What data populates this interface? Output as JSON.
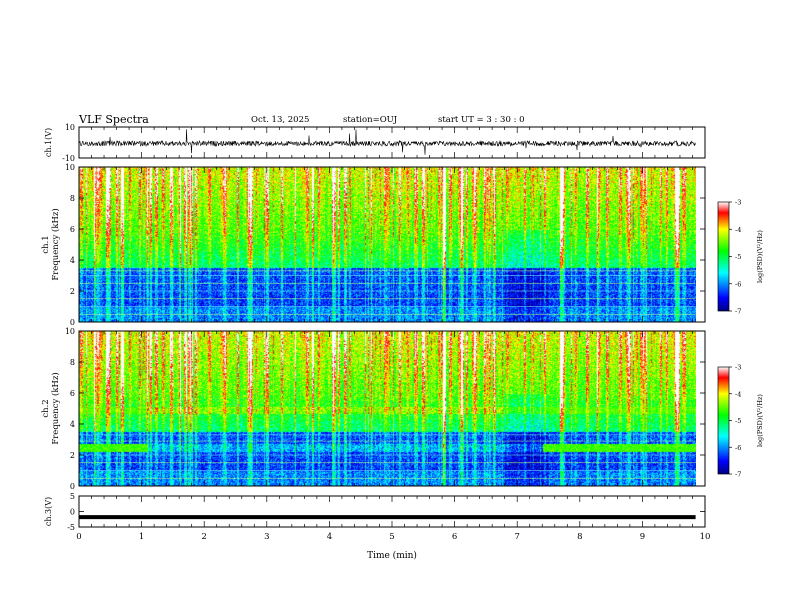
{
  "header": {
    "title": "VLF Spectra",
    "date": "Oct. 13, 2025",
    "station": "station=OUJ",
    "start": "start  UT =   3 : 30 : 0"
  },
  "chart_data": [
    {
      "type": "line",
      "name_label": "ch.1(V)",
      "ylabel": "ch.1(V)",
      "ylim": [
        -10,
        10
      ],
      "yticks": [
        "10",
        "-10"
      ],
      "xlim": [
        0,
        10
      ],
      "description_values": {
        "baseline": 0,
        "typical_spike_max": 10,
        "typical_spike_min": -10
      }
    },
    {
      "type": "heatmap",
      "ylabel_channel": "ch.1",
      "ylabel": "Frequency (kHz)",
      "ylim": [
        0,
        10
      ],
      "yticks": [
        "0",
        "2",
        "4",
        "6",
        "8",
        "10"
      ],
      "xlim": [
        0,
        10
      ],
      "colorbar": {
        "label": "log(PSD)(V²/Hz)",
        "range": [
          -7,
          -3
        ],
        "ticks": [
          "-3",
          "-4",
          "-5",
          "-6",
          "-7"
        ],
        "colors": [
          "#00008f",
          "#0000ff",
          "#00ffff",
          "#00ff00",
          "#ffff00",
          "#ff0000",
          "#ffffff"
        ]
      },
      "hum_lines_khz": [
        0.5,
        1.0,
        1.5,
        2.0,
        2.5,
        3.0,
        3.3
      ]
    },
    {
      "type": "heatmap",
      "ylabel_channel": "ch.2",
      "ylabel": "Frequency (kHz)",
      "ylim": [
        0,
        10
      ],
      "yticks": [
        "0",
        "2",
        "4",
        "6",
        "8",
        "10"
      ],
      "xlim": [
        0,
        10
      ],
      "colorbar": {
        "label": "log(PSD)(V²/Hz)",
        "range": [
          -7,
          -3
        ],
        "ticks": [
          "-3",
          "-4",
          "-5",
          "-6",
          "-7"
        ],
        "colors": [
          "#00008f",
          "#0000ff",
          "#00ffff",
          "#00ff00",
          "#ffff00",
          "#ff0000",
          "#ffffff"
        ]
      },
      "bands_khz": [
        2.5,
        4.9
      ],
      "hum_lines_khz": [
        0.5,
        1.0,
        1.5,
        2.0,
        2.9,
        3.3
      ]
    },
    {
      "type": "line",
      "ylabel": "ch.3(V)",
      "ylim": [
        -5,
        5
      ],
      "yticks": [
        "5",
        "0",
        "-5"
      ],
      "xlim": [
        0,
        10
      ],
      "level": -1.8
    }
  ],
  "xaxis": {
    "label": "Time (min)",
    "ticks": [
      "0",
      "1",
      "2",
      "3",
      "4",
      "5",
      "6",
      "7",
      "8",
      "9",
      "10"
    ],
    "data_end": 9.85
  }
}
